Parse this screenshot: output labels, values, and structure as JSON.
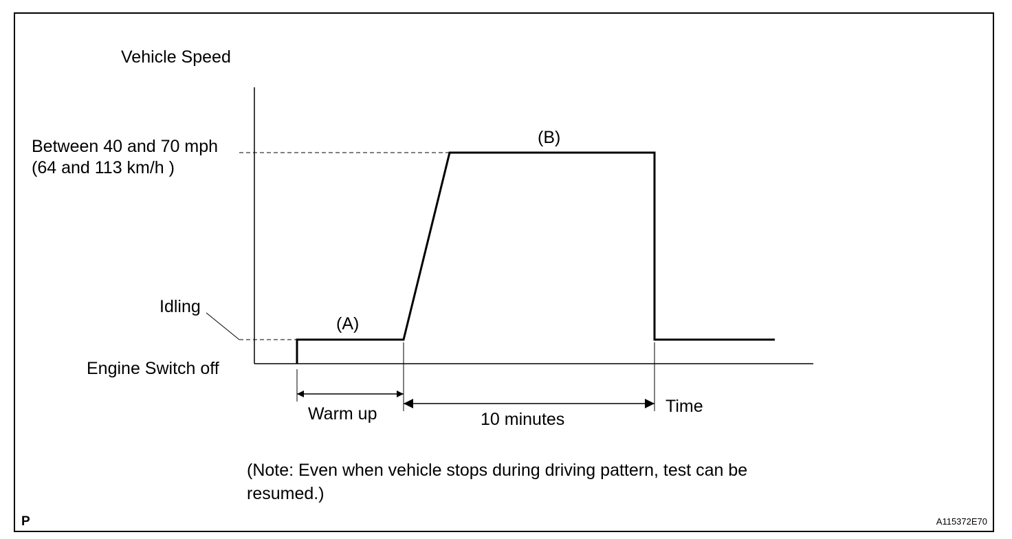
{
  "diagram": {
    "y_axis_title": "Vehicle Speed",
    "speed_label_line1": "Between 40 and 70 mph",
    "speed_label_line2": "(64 and 113 km/h )",
    "idling_label": "Idling",
    "engine_off_label": "Engine Switch off",
    "segment_a_label": "(A)",
    "segment_b_label": "(B)",
    "warm_up_label": "Warm up",
    "duration_label": "10 minutes",
    "x_axis_title": "Time",
    "note_line1": "(Note: Even when vehicle stops during driving pattern, test can be",
    "note_line2": "resumed.)",
    "corner_mark": "P",
    "figure_code": "A115372E70"
  },
  "colors": {
    "ink": "#000000",
    "paper": "#ffffff"
  }
}
